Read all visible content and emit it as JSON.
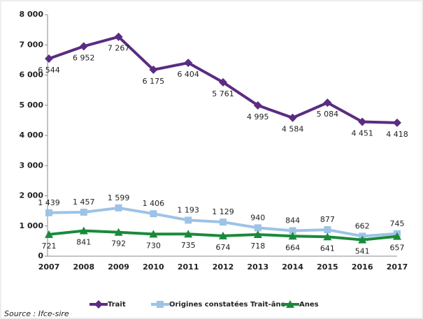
{
  "chart_data": {
    "type": "line",
    "categories": [
      "2007",
      "2008",
      "2009",
      "2010",
      "2011",
      "2012",
      "2013",
      "2014",
      "2015",
      "2016",
      "2017"
    ],
    "series": [
      {
        "name": "Trait",
        "color": "#5b2c82",
        "marker": "diamond",
        "values": [
          6544,
          6952,
          7267,
          6175,
          6404,
          5761,
          4995,
          4584,
          5084,
          4451,
          4418
        ],
        "value_labels": [
          "6 544",
          "6 952",
          "7 267",
          "6 175",
          "6 404",
          "5 761",
          "4 995",
          "4 584",
          "5 084",
          "4 451",
          "4 418"
        ]
      },
      {
        "name": "Origines constatées Trait-âne",
        "color": "#9dc3e6",
        "marker": "square",
        "values": [
          1439,
          1457,
          1599,
          1406,
          1193,
          1129,
          940,
          844,
          877,
          662,
          745
        ],
        "value_labels": [
          "1 439",
          "1 457",
          "1 599",
          "1 406",
          "1 193",
          "1 129",
          "940",
          "844",
          "877",
          "662",
          "745"
        ]
      },
      {
        "name": "Anes",
        "color": "#1a8a3a",
        "marker": "triangle",
        "values": [
          721,
          841,
          792,
          730,
          735,
          674,
          718,
          664,
          641,
          541,
          657
        ]
      }
    ],
    "ylim": [
      0,
      8000
    ],
    "yticks": [
      0,
      {
        "value": 1000,
        "label": "1 000"
      },
      {
        "value": 2000,
        "label": "2 000"
      },
      {
        "value": 3000,
        "label": "3 000"
      },
      {
        "value": 4000,
        "label": "4 000"
      },
      {
        "value": 5000,
        "label": "5 000"
      },
      {
        "value": 6000,
        "label": "6 000"
      },
      {
        "value": 7000,
        "label": "7 000"
      },
      {
        "value": 8000,
        "label": "8 000"
      }
    ],
    "legend": "bottom",
    "note": "Source : Ifce-sire"
  }
}
